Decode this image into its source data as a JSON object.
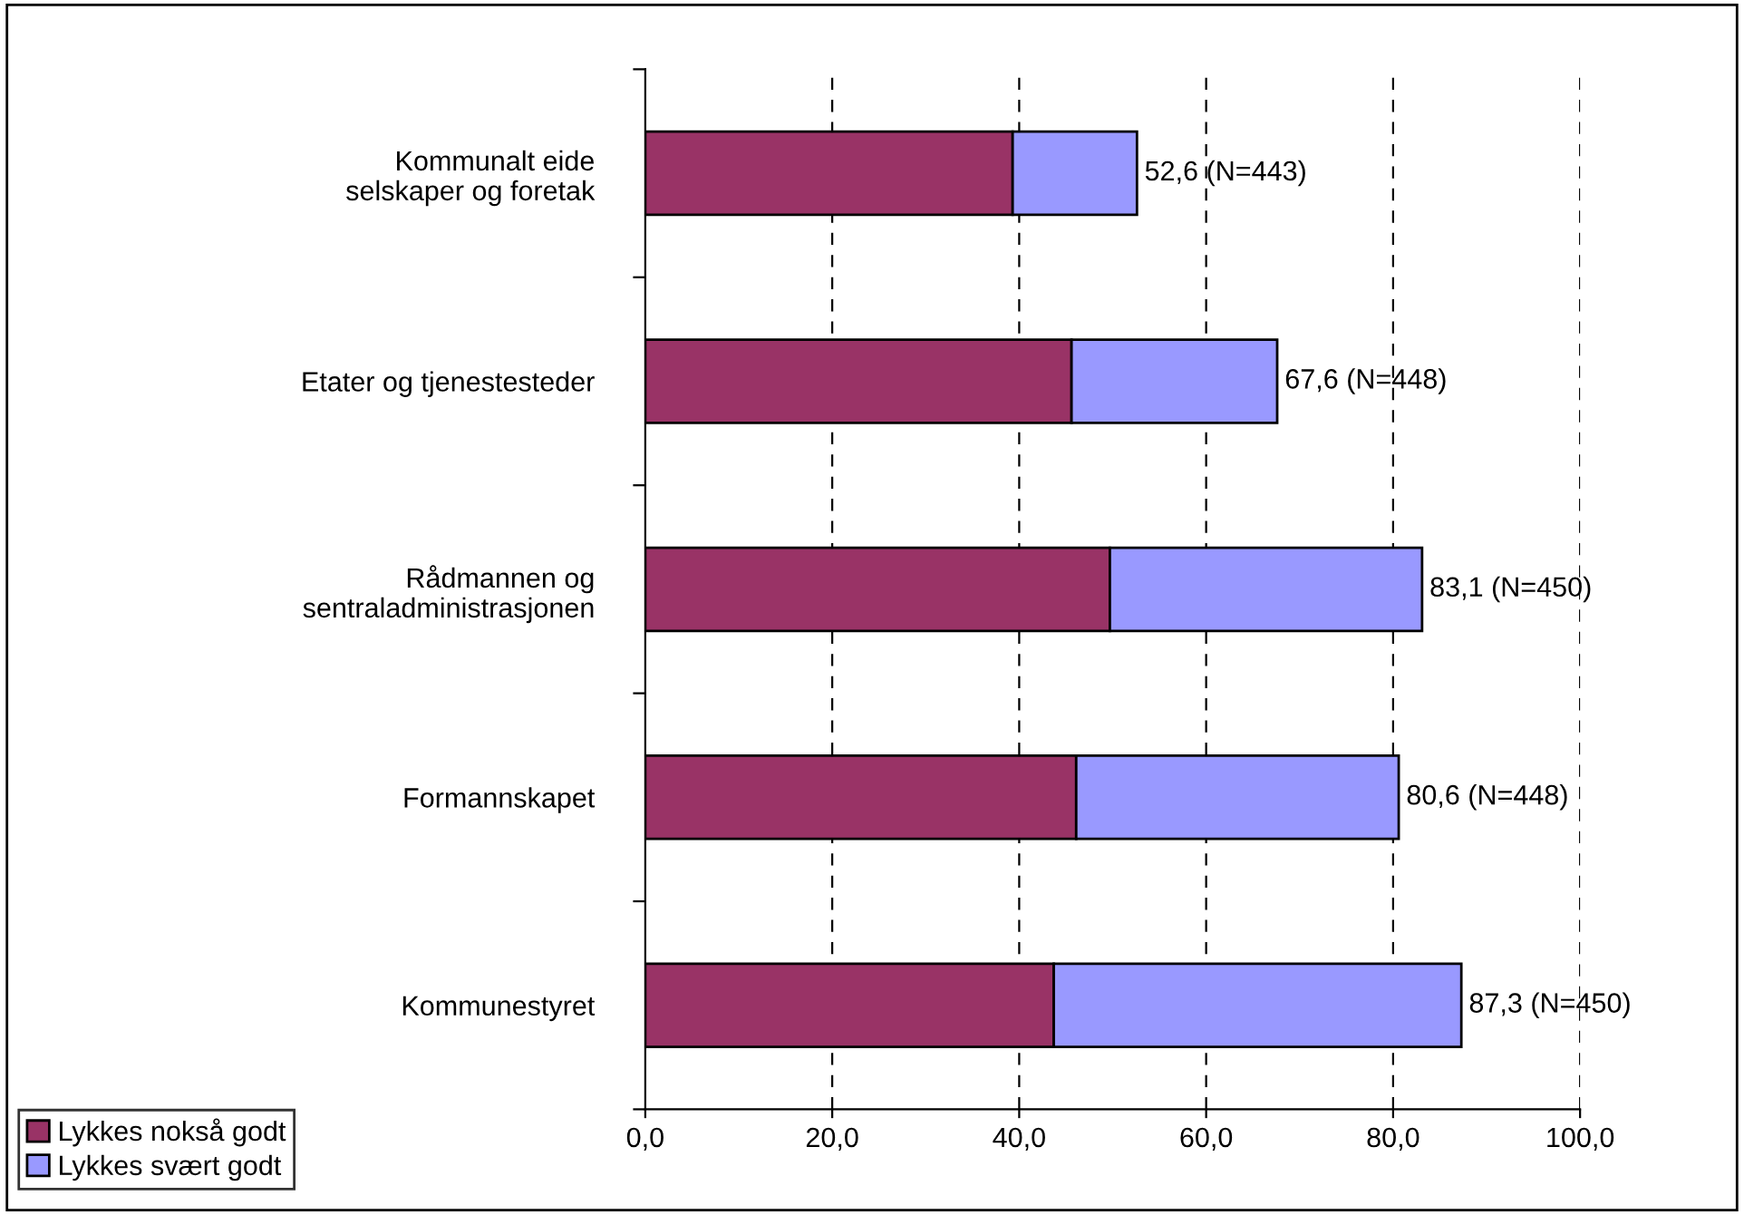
{
  "chart_data": {
    "type": "bar",
    "orientation": "horizontal",
    "stacked": true,
    "categories": [
      "Kommunalt eide\nselskaper og foretak",
      "Etater og tjenestesteder",
      "Rådmannen og\nsentraladministrasjonen",
      "Formannskapet",
      "Kommunestyret"
    ],
    "series": [
      {
        "name": "Lykkes nokså godt",
        "color": "#993366",
        "values": [
          39.3,
          45.6,
          49.7,
          46.1,
          43.7
        ]
      },
      {
        "name": "Lykkes svært godt",
        "color": "#9999ff",
        "values": [
          13.3,
          22.0,
          33.4,
          34.5,
          43.6
        ]
      }
    ],
    "totals": [
      "52,6 (N=443)",
      "67,6 (N=448)",
      "83,1 (N=450)",
      "80,6 (N=448)",
      "87,3 (N=450)"
    ],
    "xlim": [
      0,
      100
    ],
    "xticks": [
      {
        "value": 0,
        "label": "0,0"
      },
      {
        "value": 20,
        "label": "20,0"
      },
      {
        "value": 40,
        "label": "40,0"
      },
      {
        "value": 60,
        "label": "60,0"
      },
      {
        "value": 80,
        "label": "80,0"
      },
      {
        "value": 100,
        "label": "100,0"
      }
    ],
    "grid": "x",
    "line_style": "dashed",
    "legend": "bottom left"
  }
}
